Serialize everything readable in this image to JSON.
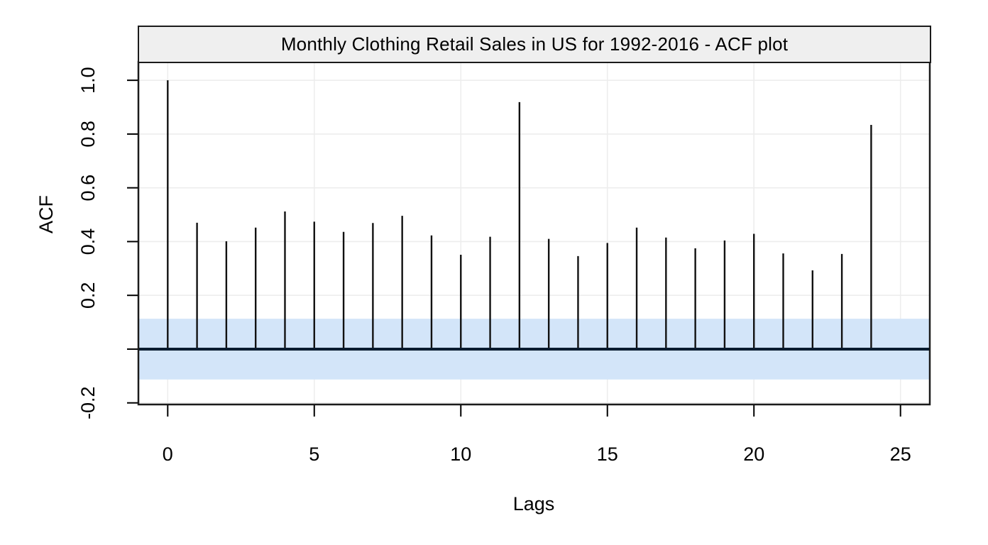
{
  "chart_data": {
    "type": "bar",
    "subtype": "acf-stem-plot",
    "title": "Monthly Clothing Retail Sales in US for 1992-2016 - ACF plot",
    "xlabel": "Lags",
    "ylabel": "ACF",
    "lags": [
      0,
      1,
      2,
      3,
      4,
      5,
      6,
      7,
      8,
      9,
      10,
      11,
      12,
      13,
      14,
      15,
      16,
      17,
      18,
      19,
      20,
      21,
      22,
      23,
      24
    ],
    "acf_values": [
      1.0,
      0.47,
      0.401,
      0.452,
      0.512,
      0.474,
      0.436,
      0.469,
      0.496,
      0.423,
      0.351,
      0.418,
      0.919,
      0.41,
      0.346,
      0.395,
      0.452,
      0.415,
      0.375,
      0.404,
      0.429,
      0.356,
      0.293,
      0.354,
      0.834
    ],
    "confidence_band": {
      "upper": 0.113,
      "lower": -0.113
    },
    "x_ticks": {
      "values": [
        0,
        5,
        10,
        15,
        20,
        25
      ],
      "labels": [
        "0",
        "5",
        "10",
        "15",
        "20",
        "25"
      ]
    },
    "y_ticks": {
      "values": [
        -0.2,
        0.0,
        0.2,
        0.4,
        0.6,
        0.8,
        1.0
      ],
      "labels": [
        "-0.2",
        "",
        "0.2",
        "0.4",
        "0.6",
        "0.8",
        "1.0"
      ]
    },
    "xlim": [
      -1,
      26
    ],
    "ylim": [
      -0.206,
      1.069
    ],
    "grid": true,
    "legend_position": "none",
    "colors": {
      "bar": "#111111",
      "zero_line": "#0a1c30",
      "confidence_band": "#d3e5f9",
      "gridline": "#ededed",
      "strip_fill": "#efefef",
      "border": "#1b1b1b",
      "text": "#000000",
      "background": "#ffffff"
    }
  }
}
